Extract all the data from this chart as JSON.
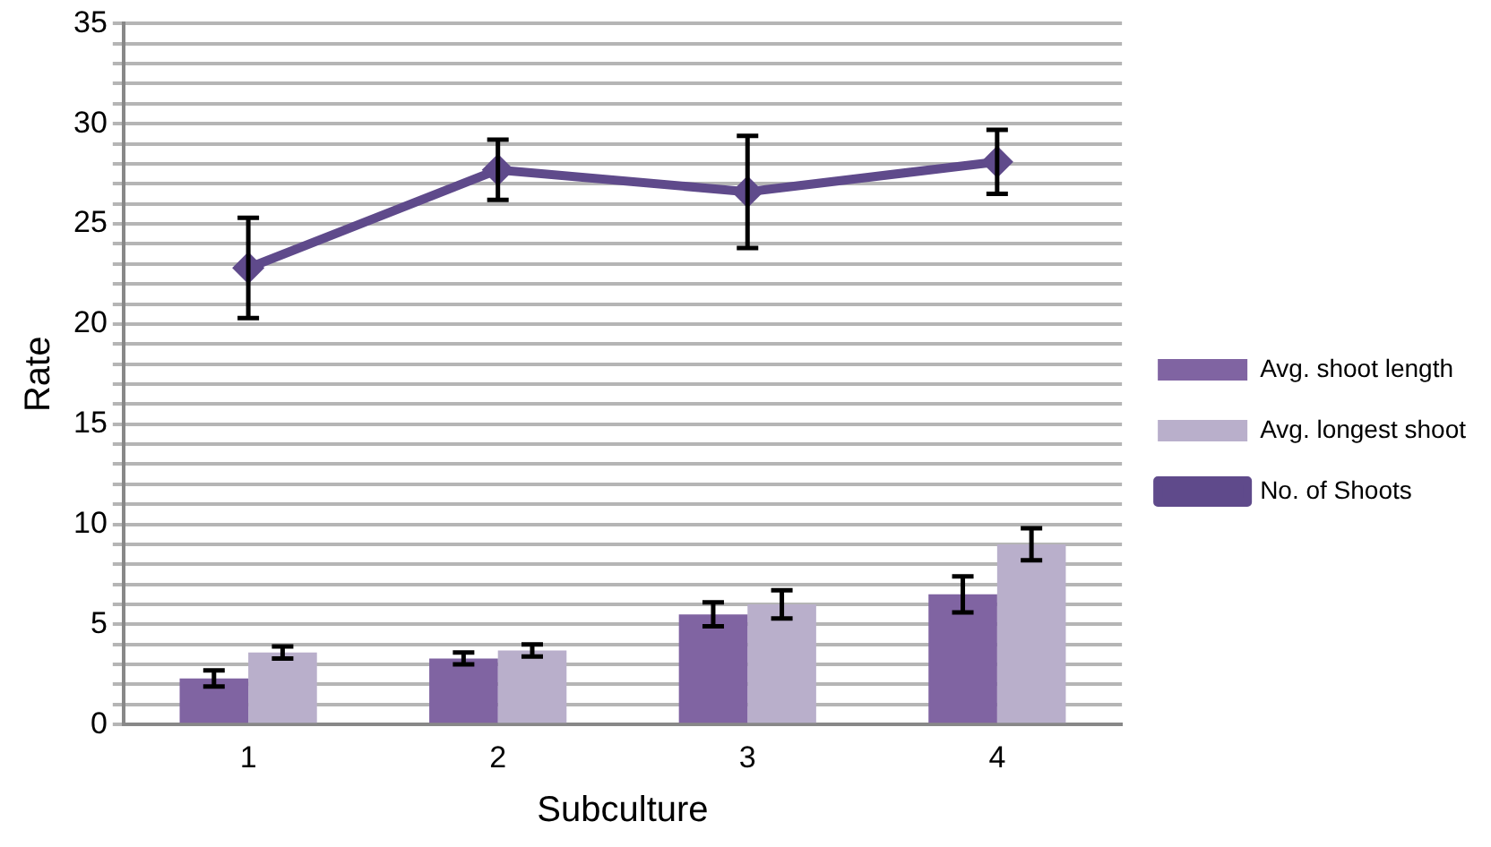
{
  "chart_data": {
    "type": "bar",
    "xlabel": "Subculture",
    "ylabel": "Rate",
    "categories": [
      "1",
      "2",
      "3",
      "4"
    ],
    "series": [
      {
        "name": "Avg. shoot length",
        "color": "#8064a2",
        "values": [
          2.3,
          3.3,
          5.5,
          6.5
        ],
        "errors": [
          0.4,
          0.3,
          0.6,
          0.9
        ]
      },
      {
        "name": "Avg. longest shoot",
        "color": "#b9afcb",
        "values": [
          3.6,
          3.7,
          6.0,
          9.0
        ],
        "errors": [
          0.3,
          0.3,
          0.7,
          0.8
        ]
      },
      {
        "name": "No. of Shoots",
        "type": "line",
        "color": "#5f4a8b",
        "values": [
          22.8,
          27.7,
          26.6,
          28.1
        ],
        "errors": [
          2.5,
          1.5,
          2.8,
          1.6
        ]
      }
    ],
    "ylim": [
      0,
      35
    ],
    "yticks": [
      0,
      {
        "value": 1,
        "label": null
      },
      {
        "value": 2,
        "label": null
      },
      {
        "value": 3,
        "label": null
      },
      {
        "value": 4,
        "label": null
      },
      5,
      {
        "value": 6,
        "label": null
      },
      {
        "value": 7,
        "label": null
      },
      {
        "value": 8,
        "label": null
      },
      {
        "value": 9,
        "label": null
      },
      10,
      {
        "value": 11,
        "label": null
      },
      {
        "value": 12,
        "label": null
      },
      {
        "value": 13,
        "label": null
      },
      {
        "value": 14,
        "label": null
      },
      15,
      {
        "value": 16,
        "label": null
      },
      {
        "value": 17,
        "label": null
      },
      {
        "value": 18,
        "label": null
      },
      {
        "value": 19,
        "label": null
      },
      20,
      {
        "value": 21,
        "label": null
      },
      {
        "value": 22,
        "label": null
      },
      {
        "value": 23,
        "label": null
      },
      {
        "value": 24,
        "label": null
      },
      25,
      {
        "value": 26,
        "label": null
      },
      {
        "value": 27,
        "label": null
      },
      {
        "value": 28,
        "label": null
      },
      {
        "value": 29,
        "label": null
      },
      30,
      {
        "value": 31,
        "label": null
      },
      {
        "value": 32,
        "label": null
      },
      {
        "value": 33,
        "label": null
      },
      {
        "value": 34,
        "label": null
      },
      35
    ],
    "grid": "y",
    "legend": "right",
    "marker": "diamond"
  }
}
